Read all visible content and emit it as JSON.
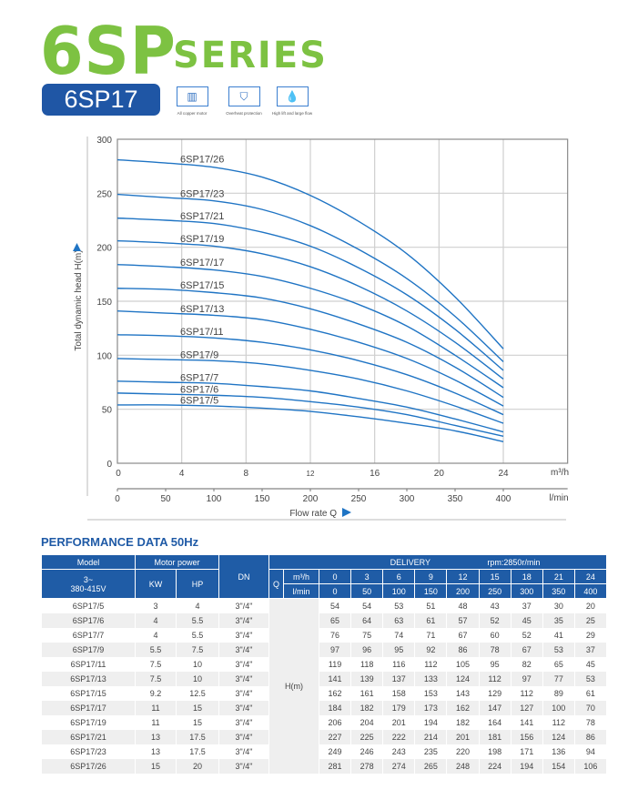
{
  "header": {
    "series_main": "6SP",
    "series_word": "SERIES",
    "model_badge": "6SP17"
  },
  "features": [
    {
      "icon": "motor-icon",
      "label": "All copper motor"
    },
    {
      "icon": "shield-check-icon",
      "label": "Overheat protection"
    },
    {
      "icon": "water-flow-icon",
      "label": "High lift and large flow"
    }
  ],
  "chart_data": {
    "type": "line",
    "ylabel": "Total dynamic head H(m)",
    "xlabel": "Flow rate Q",
    "x_unit_primary": "m³/h",
    "x_unit_secondary": "l/min",
    "x": [
      0,
      3,
      6,
      9,
      12,
      15,
      18,
      21,
      24
    ],
    "xlim": [
      0,
      28
    ],
    "ylim": [
      0,
      300
    ],
    "x_ticks": [
      "0",
      "4",
      "8",
      "12",
      "16",
      "20",
      "24"
    ],
    "x2_ticks": [
      "0",
      "50",
      "100",
      "150",
      "200",
      "250",
      "300",
      "350",
      "400"
    ],
    "y_ticks": [
      "0",
      "50",
      "100",
      "150",
      "200",
      "250",
      "300"
    ],
    "grid": true,
    "line_color": "#1f74c4",
    "series": [
      {
        "name": "6SP17/5",
        "values": [
          54,
          54,
          53,
          51,
          48,
          43,
          37,
          30,
          20
        ]
      },
      {
        "name": "6SP17/6",
        "values": [
          65,
          64,
          63,
          61,
          57,
          52,
          45,
          35,
          25
        ]
      },
      {
        "name": "6SP17/7",
        "values": [
          76,
          75,
          74,
          71,
          67,
          60,
          52,
          41,
          29
        ]
      },
      {
        "name": "6SP17/9",
        "values": [
          97,
          96,
          95,
          92,
          86,
          78,
          67,
          53,
          37
        ]
      },
      {
        "name": "6SP17/11",
        "values": [
          119,
          118,
          116,
          112,
          105,
          95,
          82,
          65,
          45
        ]
      },
      {
        "name": "6SP17/13",
        "values": [
          141,
          139,
          137,
          133,
          124,
          112,
          97,
          77,
          53
        ]
      },
      {
        "name": "6SP17/15",
        "values": [
          162,
          161,
          158,
          153,
          143,
          129,
          112,
          89,
          61
        ]
      },
      {
        "name": "6SP17/17",
        "values": [
          184,
          182,
          179,
          173,
          162,
          147,
          127,
          100,
          70
        ]
      },
      {
        "name": "6SP17/19",
        "values": [
          206,
          204,
          201,
          194,
          182,
          164,
          141,
          112,
          78
        ]
      },
      {
        "name": "6SP17/21",
        "values": [
          227,
          225,
          222,
          214,
          201,
          181,
          156,
          124,
          86
        ]
      },
      {
        "name": "6SP17/23",
        "values": [
          249,
          246,
          243,
          235,
          220,
          198,
          171,
          136,
          94
        ]
      },
      {
        "name": "6SP17/26",
        "values": [
          281,
          278,
          274,
          265,
          248,
          224,
          194,
          154,
          106
        ]
      }
    ]
  },
  "table": {
    "title": "PERFORMANCE DATA 50Hz",
    "h_model": "Model",
    "h_motor": "Motor power",
    "h_dn": "DN",
    "h_delivery": "DELIVERY",
    "h_rpm": "rpm:2850r/min",
    "h_voltage": "3~\n380-415V",
    "h_kw": "KW",
    "h_hp": "HP",
    "h_q": "Q",
    "h_m3h": "m³/h",
    "h_lmin": "l/min",
    "h_hm": "H(m)",
    "m3h": [
      "0",
      "3",
      "6",
      "9",
      "12",
      "15",
      "18",
      "21",
      "24"
    ],
    "lmin": [
      "0",
      "50",
      "100",
      "150",
      "200",
      "250",
      "300",
      "350",
      "400"
    ],
    "rows": [
      {
        "model": "6SP17/5",
        "kw": "3",
        "hp": "4",
        "dn": "3\"/4\""
      },
      {
        "model": "6SP17/6",
        "kw": "4",
        "hp": "5.5",
        "dn": "3\"/4\""
      },
      {
        "model": "6SP17/7",
        "kw": "4",
        "hp": "5.5",
        "dn": "3\"/4\""
      },
      {
        "model": "6SP17/9",
        "kw": "5.5",
        "hp": "7.5",
        "dn": "3\"/4\""
      },
      {
        "model": "6SP17/11",
        "kw": "7.5",
        "hp": "10",
        "dn": "3\"/4\""
      },
      {
        "model": "6SP17/13",
        "kw": "7.5",
        "hp": "10",
        "dn": "3\"/4\""
      },
      {
        "model": "6SP17/15",
        "kw": "9.2",
        "hp": "12.5",
        "dn": "3\"/4\""
      },
      {
        "model": "6SP17/17",
        "kw": "11",
        "hp": "15",
        "dn": "3\"/4\""
      },
      {
        "model": "6SP17/19",
        "kw": "11",
        "hp": "15",
        "dn": "3\"/4\""
      },
      {
        "model": "6SP17/21",
        "kw": "13",
        "hp": "17.5",
        "dn": "3\"/4\""
      },
      {
        "model": "6SP17/23",
        "kw": "13",
        "hp": "17.5",
        "dn": "3\"/4\""
      },
      {
        "model": "6SP17/26",
        "kw": "15",
        "hp": "20",
        "dn": "3\"/4\""
      }
    ]
  }
}
